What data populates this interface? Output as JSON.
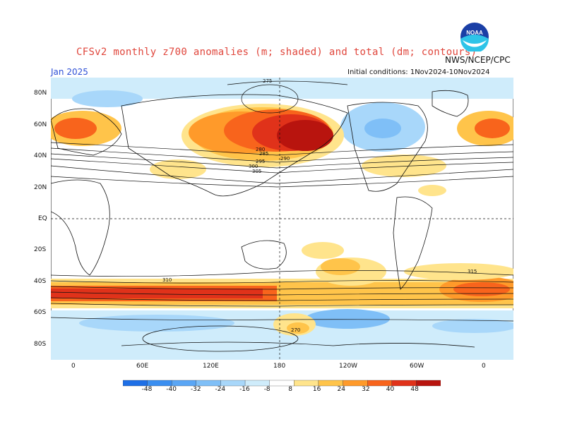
{
  "header": {
    "title": "CFSv2 monthly z700 anomalies (m; shaded) and total (dm; contours)",
    "organization": "NWS/NCEP/CPC",
    "month": "Jan 2025",
    "initial_conditions": "Initial conditions: 1Nov2024-10Nov2024",
    "logo_icon": "noaa-logo-icon"
  },
  "axes": {
    "lat_labels": [
      "80N",
      "60N",
      "40N",
      "20N",
      "EQ",
      "20S",
      "40S",
      "60S",
      "80S"
    ],
    "lon_labels": [
      "0",
      "60E",
      "120E",
      "180",
      "120W",
      "60W",
      "0"
    ]
  },
  "contour_labels": [
    "275",
    "280",
    "285",
    "290",
    "295",
    "300",
    "305",
    "310",
    "315",
    "270"
  ],
  "colorbar": {
    "labels": [
      "-48",
      "-40",
      "-32",
      "-24",
      "-16",
      "-8",
      "8",
      "16",
      "24",
      "32",
      "40",
      "48"
    ],
    "colors": [
      "#1e6fe6",
      "#3a8ef0",
      "#5aa6f5",
      "#7fbff7",
      "#a8d7fa",
      "#cfecfb",
      "#ffffff",
      "#ffe48c",
      "#ffc44a",
      "#ff9a2a",
      "#f8641c",
      "#e0321a",
      "#b8140e"
    ]
  }
}
